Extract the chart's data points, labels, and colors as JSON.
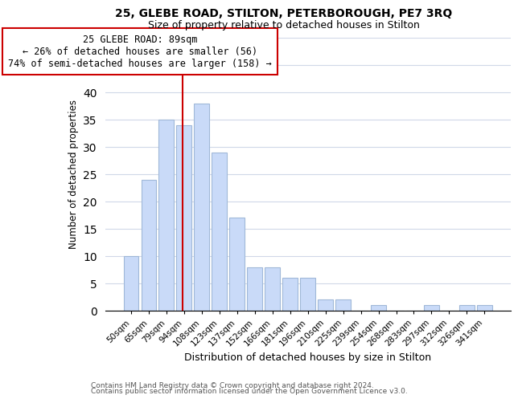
{
  "title1": "25, GLEBE ROAD, STILTON, PETERBOROUGH, PE7 3RQ",
  "title2": "Size of property relative to detached houses in Stilton",
  "xlabel": "Distribution of detached houses by size in Stilton",
  "ylabel": "Number of detached properties",
  "bar_labels": [
    "50sqm",
    "65sqm",
    "79sqm",
    "94sqm",
    "108sqm",
    "123sqm",
    "137sqm",
    "152sqm",
    "166sqm",
    "181sqm",
    "196sqm",
    "210sqm",
    "225sqm",
    "239sqm",
    "254sqm",
    "268sqm",
    "283sqm",
    "297sqm",
    "312sqm",
    "326sqm",
    "341sqm"
  ],
  "bar_values": [
    10,
    24,
    35,
    34,
    38,
    29,
    17,
    8,
    8,
    6,
    6,
    2,
    2,
    0,
    1,
    0,
    0,
    1,
    0,
    1,
    1
  ],
  "bar_color": "#c9daf8",
  "bar_edge_color": "#a0b8d8",
  "vline_color": "#cc0000",
  "annotation_title": "25 GLEBE ROAD: 89sqm",
  "annotation_line1": "← 26% of detached houses are smaller (56)",
  "annotation_line2": "74% of semi-detached houses are larger (158) →",
  "annotation_box_color": "#ffffff",
  "annotation_box_edge": "#cc0000",
  "ylim": [
    0,
    50
  ],
  "yticks": [
    0,
    5,
    10,
    15,
    20,
    25,
    30,
    35,
    40,
    45,
    50
  ],
  "footer1": "Contains HM Land Registry data © Crown copyright and database right 2024.",
  "footer2": "Contains public sector information licensed under the Open Government Licence v3.0.",
  "bg_color": "#ffffff",
  "grid_color": "#d0d8e8"
}
